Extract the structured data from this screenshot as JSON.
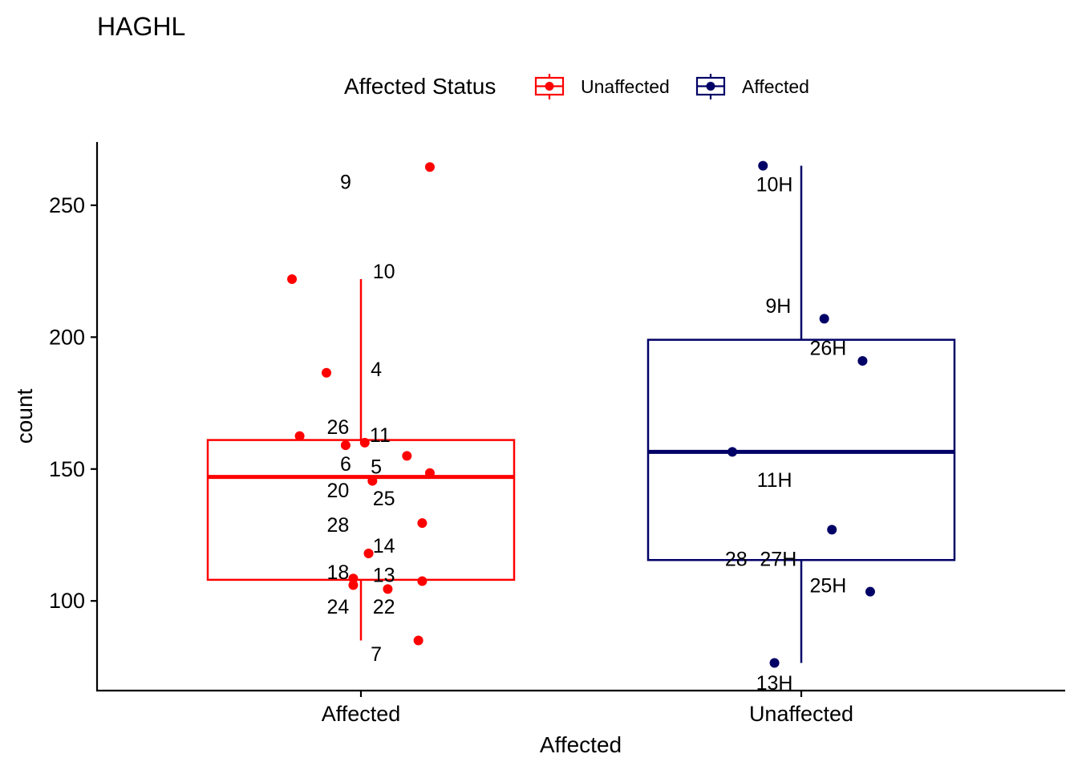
{
  "chart_data": {
    "type": "boxplot",
    "title": "HAGHL",
    "xlabel": "Affected",
    "ylabel": "count",
    "ylim": [
      66,
      274
    ],
    "yticks": [
      100,
      150,
      200,
      250
    ],
    "categories": [
      "Affected",
      "Unaffected"
    ],
    "legend": {
      "title": "Affected Status",
      "position": "top",
      "items": [
        {
          "label": "Unaffected",
          "color": "#FF0000"
        },
        {
          "label": "Affected",
          "color": "#000066"
        }
      ]
    },
    "groups": [
      {
        "category": "Affected",
        "color": "#FF0000",
        "box": {
          "q1": 108,
          "median": 147,
          "q3": 161,
          "whisker_low": 85,
          "whisker_high": 222
        },
        "points": [
          {
            "x": 0.18,
            "y": 264.5
          },
          {
            "x": -0.18,
            "y": 222
          },
          {
            "x": -0.09,
            "y": 186.5
          },
          {
            "x": -0.16,
            "y": 162.5
          },
          {
            "x": -0.04,
            "y": 159
          },
          {
            "x": 0.01,
            "y": 160
          },
          {
            "x": 0.12,
            "y": 155
          },
          {
            "x": 0.18,
            "y": 148.5
          },
          {
            "x": 0.03,
            "y": 145.5
          },
          {
            "x": 0.16,
            "y": 129.5
          },
          {
            "x": 0.02,
            "y": 118
          },
          {
            "x": -0.02,
            "y": 108.5
          },
          {
            "x": 0.16,
            "y": 107.5
          },
          {
            "x": -0.02,
            "y": 106
          },
          {
            "x": 0.07,
            "y": 104.5
          },
          {
            "x": 0.15,
            "y": 85
          }
        ],
        "labels": [
          {
            "text": "9",
            "x": -0.04,
            "y": 259
          },
          {
            "text": "10",
            "x": 0.06,
            "y": 225
          },
          {
            "text": "4",
            "x": 0.04,
            "y": 188
          },
          {
            "text": "26",
            "x": -0.06,
            "y": 166
          },
          {
            "text": "11",
            "x": 0.05,
            "y": 163
          },
          {
            "text": "6",
            "x": -0.04,
            "y": 152
          },
          {
            "text": "5",
            "x": 0.04,
            "y": 151
          },
          {
            "text": "20",
            "x": -0.06,
            "y": 142
          },
          {
            "text": "25",
            "x": 0.06,
            "y": 139
          },
          {
            "text": "28",
            "x": -0.06,
            "y": 129
          },
          {
            "text": "14",
            "x": 0.06,
            "y": 121
          },
          {
            "text": "18",
            "x": -0.06,
            "y": 111
          },
          {
            "text": "13",
            "x": 0.06,
            "y": 110
          },
          {
            "text": "24",
            "x": -0.06,
            "y": 98
          },
          {
            "text": "22",
            "x": 0.06,
            "y": 98
          },
          {
            "text": "7",
            "x": 0.04,
            "y": 80
          }
        ]
      },
      {
        "category": "Unaffected",
        "color": "#000066",
        "box": {
          "q1": 115.5,
          "median": 156.5,
          "q3": 199,
          "whisker_low": 76.5,
          "whisker_high": 265
        },
        "points": [
          {
            "x": -0.1,
            "y": 265
          },
          {
            "x": 0.06,
            "y": 207
          },
          {
            "x": 0.16,
            "y": 191
          },
          {
            "x": -0.18,
            "y": 156.5
          },
          {
            "x": 0.08,
            "y": 127
          },
          {
            "x": 0.18,
            "y": 103.5
          },
          {
            "x": -0.07,
            "y": 76.5
          }
        ],
        "labels": [
          {
            "text": "10H",
            "x": -0.07,
            "y": 258
          },
          {
            "text": "9H",
            "x": -0.06,
            "y": 212
          },
          {
            "text": "26H",
            "x": 0.07,
            "y": 196
          },
          {
            "text": "11H",
            "x": -0.07,
            "y": 146
          },
          {
            "text": "28",
            "x": -0.17,
            "y": 116
          },
          {
            "text": "27H",
            "x": -0.06,
            "y": 116
          },
          {
            "text": "25H",
            "x": 0.07,
            "y": 106
          },
          {
            "text": "13H",
            "x": -0.07,
            "y": 69
          }
        ]
      }
    ]
  }
}
